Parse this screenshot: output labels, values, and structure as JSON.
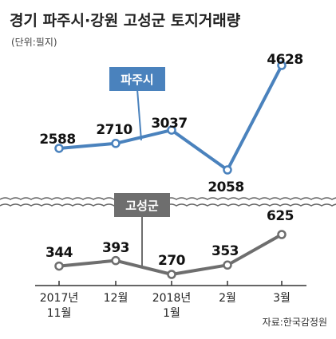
{
  "title": "경기 파주시·강원 고성군 토지거래량",
  "unit": "(단위:필지)",
  "source": "자료:한국감정원",
  "colors": {
    "paju": "#4a82bd",
    "goseong": "#6e6e6e",
    "paju_marker_fill": "#ffffff",
    "goseong_marker_fill": "#ffffff",
    "wave": "#666666"
  },
  "chart_data": {
    "type": "line",
    "title": "경기 파주시·강원 고성군 토지거래량",
    "x_ticks": [
      [
        "2017년",
        "11월"
      ],
      [
        "12월"
      ],
      [
        "2018년",
        "1월"
      ],
      [
        "2월"
      ],
      [
        "3월"
      ]
    ],
    "series": [
      {
        "name": "파주시",
        "values": [
          2588,
          2710,
          3037,
          2058,
          4628
        ],
        "value_labels": [
          "2588",
          "2710",
          "3037",
          "2058",
          "4628"
        ]
      },
      {
        "name": "고성군",
        "values": [
          344,
          393,
          270,
          353,
          625
        ],
        "value_labels": [
          "344",
          "393",
          "270",
          "353",
          "625"
        ]
      }
    ],
    "broken_axis": true,
    "grid": false
  }
}
